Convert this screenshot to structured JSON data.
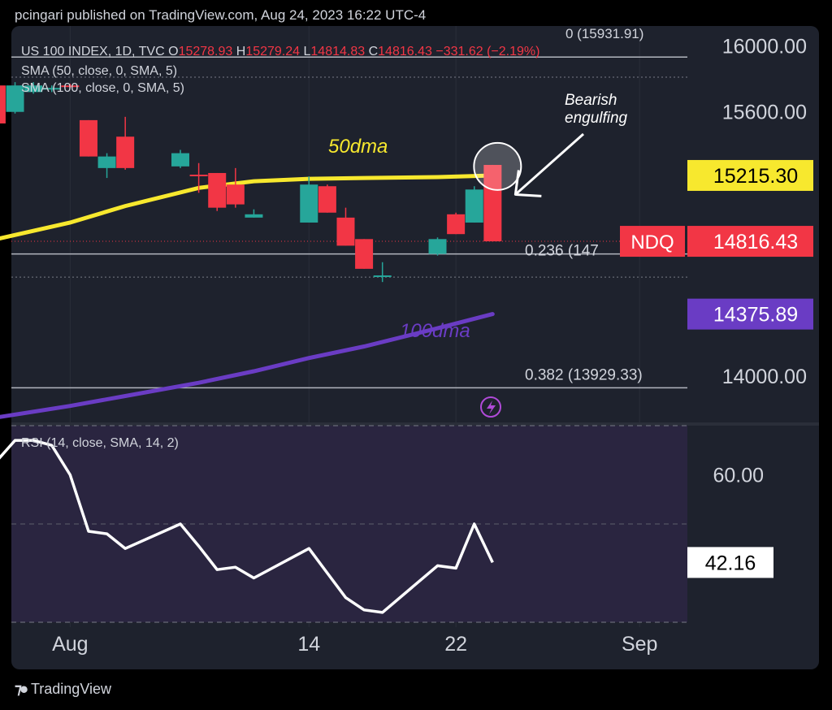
{
  "header": {
    "text": "pcingari published on TradingView.com, Aug 24, 2023 16:22 UTC-4"
  },
  "footer": {
    "logo_icon": "tradingview-logo-icon",
    "brand": "TradingView"
  },
  "colors": {
    "background": "#000000",
    "pane": "#1e222d",
    "up": "#26a69a",
    "down": "#f23645",
    "sma50": "#f7e82e",
    "sma100": "#6a3cc4",
    "rsi_line": "#ffffff",
    "rsi_band": "#2a2540",
    "axis_text": "#d1d4dc"
  },
  "legend": {
    "symbol": "US 100 INDEX, 1D, TVC",
    "o_label": "O",
    "o_value": "15278.93",
    "h_label": "H",
    "h_value": "15279.24",
    "l_label": "L",
    "l_value": "14814.83",
    "c_label": "C",
    "c_value": "14816.43",
    "change": "−331.62 (−2.19%)",
    "sma50": "SMA (50, close, 0, SMA, 5)",
    "sma100": "SMA (100, close, 0, SMA, 5)",
    "fib_top": "0 (15931.91)"
  },
  "chart_data": [
    {
      "type": "candlestick",
      "title": "US 100 INDEX, 1D, TVC",
      "ylim": [
        13720,
        16120
      ],
      "price_ticks": [
        "16000.00",
        "15600.00",
        "14000.00"
      ],
      "x_tick_labels": [
        {
          "label": "Aug",
          "day": 1
        },
        {
          "label": "14",
          "day": 14
        },
        {
          "label": "22",
          "day": 22
        },
        {
          "label": "Sep",
          "day": 32
        }
      ],
      "xlim": [
        -2.2,
        34.6
      ],
      "candles": [
        {
          "day": -3,
          "open": 15760,
          "high": 15830,
          "low": 15500,
          "close": 15530
        },
        {
          "day": -2,
          "open": 15600,
          "high": 15780,
          "low": 15590,
          "close": 15760
        },
        {
          "day": -1,
          "open": 15720,
          "high": 15780,
          "low": 15710,
          "close": 15760
        },
        {
          "day": 0,
          "open": 15740,
          "high": 15760,
          "low": 15720,
          "close": 15745
        },
        {
          "day": 1,
          "open": 15760,
          "high": 15770,
          "low": 15745,
          "close": 15755
        },
        {
          "day": 2,
          "open": 15550,
          "high": 15550,
          "low": 15330,
          "close": 15330
        },
        {
          "day": 3,
          "open": 15260,
          "high": 15350,
          "low": 15200,
          "close": 15330
        },
        {
          "day": 4,
          "open": 15450,
          "high": 15570,
          "low": 15250,
          "close": 15260
        },
        {
          "day": 7,
          "open": 15270,
          "high": 15370,
          "low": 15260,
          "close": 15350
        },
        {
          "day": 8,
          "open": 15220,
          "high": 15290,
          "low": 15110,
          "close": 15215
        },
        {
          "day": 9,
          "open": 15230,
          "high": 15230,
          "low": 15000,
          "close": 15020
        },
        {
          "day": 10,
          "open": 15160,
          "high": 15260,
          "low": 15020,
          "close": 15040
        },
        {
          "day": 11,
          "open": 14960,
          "high": 15010,
          "low": 14960,
          "close": 14980
        },
        {
          "day": 14,
          "open": 14930,
          "high": 15210,
          "low": 14930,
          "close": 15160
        },
        {
          "day": 15,
          "open": 15150,
          "high": 15160,
          "low": 14990,
          "close": 14990
        },
        {
          "day": 16,
          "open": 14960,
          "high": 15020,
          "low": 14790,
          "close": 14790
        },
        {
          "day": 17,
          "open": 14830,
          "high": 14830,
          "low": 14650,
          "close": 14650
        },
        {
          "day": 18,
          "open": 14610,
          "high": 14690,
          "low": 14570,
          "close": 14610
        },
        {
          "day": 21,
          "open": 14740,
          "high": 14840,
          "low": 14730,
          "close": 14830
        },
        {
          "day": 22,
          "open": 14980,
          "high": 14990,
          "low": 14860,
          "close": 14860
        },
        {
          "day": 23,
          "open": 14930,
          "high": 15150,
          "low": 14930,
          "close": 15130
        },
        {
          "day": 24,
          "open": 15278.93,
          "high": 15279.24,
          "low": 14814.83,
          "close": 14816.43
        }
      ],
      "sma50": {
        "name": "50dma",
        "days": [
          -3,
          1,
          4,
          8,
          11,
          14,
          17,
          21,
          24
        ],
        "values": [
          14830,
          14930,
          15030,
          15140,
          15180,
          15195,
          15200,
          15205,
          15215.3
        ]
      },
      "sma100": {
        "name": "100dma",
        "days": [
          -3,
          1,
          4,
          8,
          11,
          14,
          17,
          21,
          24
        ],
        "values": [
          13750,
          13820,
          13880,
          13960,
          14030,
          14110,
          14180,
          14290,
          14375.89
        ]
      },
      "fib_levels": [
        {
          "ratio": "0",
          "value": 15931.91,
          "label": "0 (15931.91)"
        },
        {
          "ratio": "0.236",
          "value": 14740,
          "label": "0.236 (147"
        },
        {
          "ratio": "0.382",
          "value": 13929.33,
          "label": "0.382 (13929.33)"
        }
      ],
      "price_labels": [
        {
          "text": "15215.30",
          "value": 15215.3,
          "role": "sma50"
        },
        {
          "text": "14816.43",
          "value": 14816.43,
          "role": "last",
          "tag": "NDQ"
        },
        {
          "text": "14375.89",
          "value": 14375.89,
          "role": "sma100"
        }
      ],
      "annotations": [
        {
          "text": "Bearish engulfing",
          "lines": [
            "Bearish",
            "engulfing"
          ]
        },
        {
          "text": "50dma"
        },
        {
          "text": "100dma"
        }
      ]
    },
    {
      "type": "line",
      "title": "RSI (14, close, SMA, 14, 2)",
      "ylim": [
        29,
        70
      ],
      "y_ticks": [
        "60.00"
      ],
      "band_levels": [
        70,
        30
      ],
      "mid_level": 50,
      "last_label": "42.16",
      "days": [
        -3,
        -2,
        -1,
        0,
        1,
        2,
        3,
        4,
        7,
        8,
        9,
        10,
        11,
        14,
        15,
        16,
        17,
        18,
        21,
        22,
        23,
        24
      ],
      "values": [
        62.8,
        67,
        67,
        66,
        60,
        48.5,
        48,
        45,
        50,
        45.5,
        40.7,
        41.2,
        39,
        45,
        40,
        35,
        32.5,
        32,
        41.5,
        41,
        50,
        42.16
      ]
    }
  ]
}
